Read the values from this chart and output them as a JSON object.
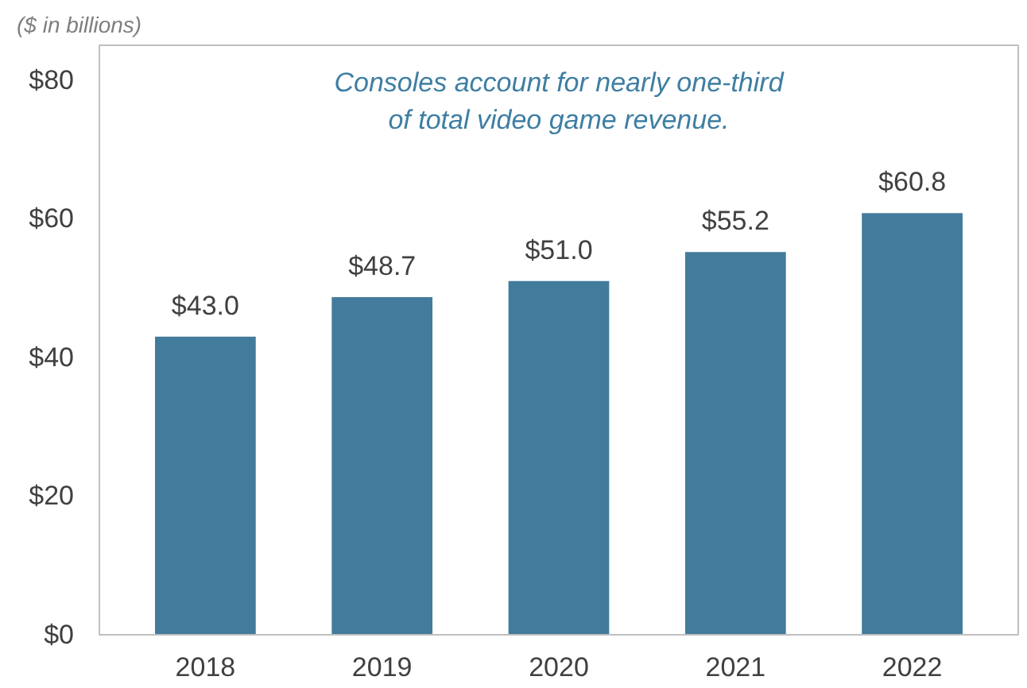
{
  "chart_data": {
    "type": "bar",
    "subtitle": "($ in billions)",
    "categories": [
      "2018",
      "2019",
      "2020",
      "2021",
      "2022"
    ],
    "values": [
      43.0,
      48.7,
      51.0,
      55.2,
      60.8
    ],
    "value_labels": [
      "$43.0",
      "$48.7",
      "$51.0",
      "$55.2",
      "$60.8"
    ],
    "color": "#427b9b",
    "ylim": [
      0,
      85
    ],
    "yticks": [
      {
        "value": 0,
        "label": "$0"
      },
      {
        "value": 20,
        "label": "$20"
      },
      {
        "value": 40,
        "label": "$40"
      },
      {
        "value": 60,
        "label": "$60"
      },
      {
        "value": 80,
        "label": "$80"
      }
    ],
    "annotations": [
      "Consoles account for nearly one-third\nof total video game revenue."
    ]
  }
}
